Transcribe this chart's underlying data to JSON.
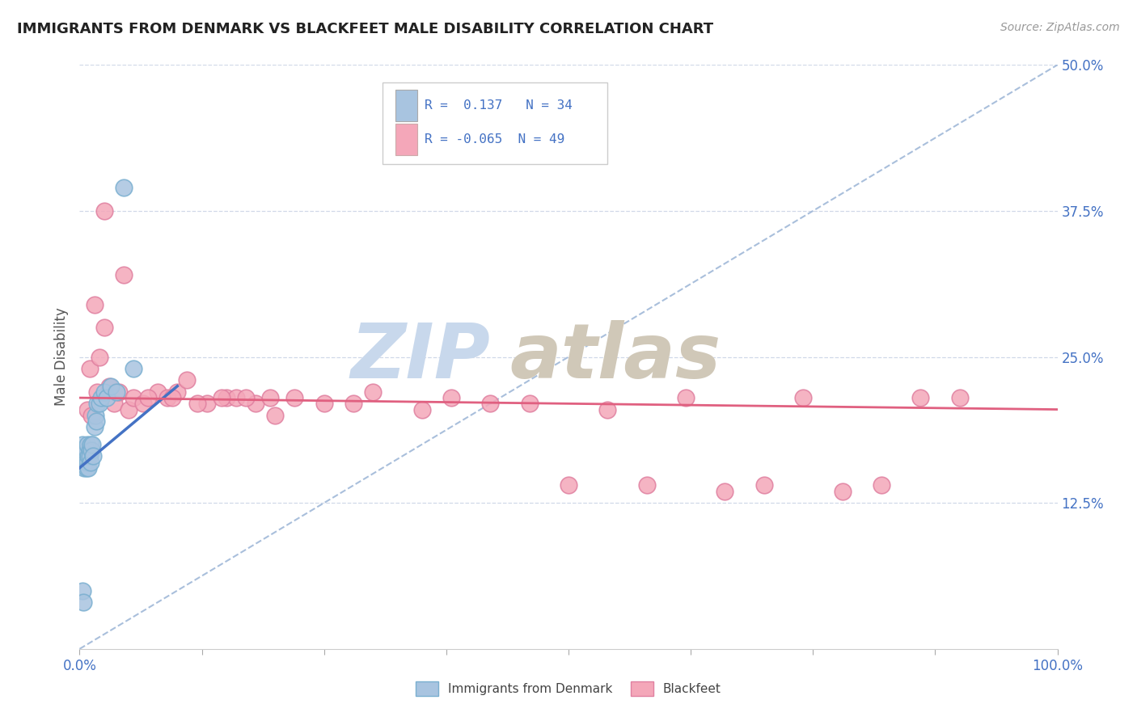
{
  "title": "IMMIGRANTS FROM DENMARK VS BLACKFEET MALE DISABILITY CORRELATION CHART",
  "source": "Source: ZipAtlas.com",
  "ylabel": "Male Disability",
  "xlim": [
    0,
    1.0
  ],
  "ylim": [
    0,
    0.5
  ],
  "ytick_labels": [
    "12.5%",
    "25.0%",
    "37.5%",
    "50.0%"
  ],
  "ytick_values": [
    0.125,
    0.25,
    0.375,
    0.5
  ],
  "xtick_values": [
    0.0,
    0.125,
    0.25,
    0.375,
    0.5,
    0.625,
    0.75,
    0.875,
    1.0
  ],
  "xtick_labels": [
    "0.0%",
    "",
    "",
    "",
    "",
    "",
    "",
    "",
    "100.0%"
  ],
  "legend_r1": "R =  0.137",
  "legend_n1": "N = 34",
  "legend_r2": "R = -0.065",
  "legend_n2": "N = 49",
  "denmark_color": "#a8c4e0",
  "denmark_edge_color": "#7aafd0",
  "blackfeet_color": "#f4a7b9",
  "blackfeet_edge_color": "#e080a0",
  "denmark_line_color": "#4472c4",
  "blackfeet_line_color": "#e06080",
  "diag_line_color": "#a0b8d8",
  "watermark_zip_color": "#c8d8ec",
  "watermark_atlas_color": "#d0c8b8",
  "background_color": "#ffffff",
  "grid_color": "#d0d8e8",
  "tick_color": "#4472c4",
  "denmark_scatter_x": [
    0.002,
    0.003,
    0.004,
    0.005,
    0.005,
    0.006,
    0.006,
    0.007,
    0.007,
    0.008,
    0.008,
    0.009,
    0.009,
    0.01,
    0.01,
    0.011,
    0.011,
    0.012,
    0.013,
    0.014,
    0.015,
    0.016,
    0.017,
    0.018,
    0.02,
    0.022,
    0.025,
    0.028,
    0.032,
    0.038,
    0.045,
    0.055,
    0.003,
    0.004
  ],
  "denmark_scatter_y": [
    0.17,
    0.175,
    0.165,
    0.16,
    0.155,
    0.165,
    0.16,
    0.17,
    0.155,
    0.175,
    0.16,
    0.165,
    0.155,
    0.17,
    0.165,
    0.175,
    0.16,
    0.17,
    0.175,
    0.165,
    0.19,
    0.2,
    0.195,
    0.21,
    0.21,
    0.215,
    0.22,
    0.215,
    0.225,
    0.22,
    0.395,
    0.24,
    0.05,
    0.04
  ],
  "blackfeet_scatter_x": [
    0.008,
    0.01,
    0.012,
    0.015,
    0.018,
    0.02,
    0.025,
    0.03,
    0.035,
    0.04,
    0.05,
    0.055,
    0.065,
    0.08,
    0.09,
    0.1,
    0.11,
    0.13,
    0.15,
    0.16,
    0.18,
    0.2,
    0.22,
    0.25,
    0.28,
    0.3,
    0.35,
    0.38,
    0.42,
    0.46,
    0.5,
    0.54,
    0.58,
    0.62,
    0.66,
    0.7,
    0.74,
    0.78,
    0.82,
    0.86,
    0.9,
    0.025,
    0.045,
    0.07,
    0.095,
    0.12,
    0.145,
    0.17,
    0.195
  ],
  "blackfeet_scatter_y": [
    0.205,
    0.24,
    0.2,
    0.295,
    0.22,
    0.25,
    0.275,
    0.225,
    0.21,
    0.22,
    0.205,
    0.215,
    0.21,
    0.22,
    0.215,
    0.22,
    0.23,
    0.21,
    0.215,
    0.215,
    0.21,
    0.2,
    0.215,
    0.21,
    0.21,
    0.22,
    0.205,
    0.215,
    0.21,
    0.21,
    0.14,
    0.205,
    0.14,
    0.215,
    0.135,
    0.14,
    0.215,
    0.135,
    0.14,
    0.215,
    0.215,
    0.375,
    0.32,
    0.215,
    0.215,
    0.21,
    0.215,
    0.215,
    0.215
  ],
  "denmark_line_x": [
    0.0,
    0.1
  ],
  "denmark_line_y_start": 0.155,
  "denmark_line_y_end": 0.225,
  "blackfeet_line_x": [
    0.0,
    1.0
  ],
  "blackfeet_line_y_start": 0.215,
  "blackfeet_line_y_end": 0.205
}
